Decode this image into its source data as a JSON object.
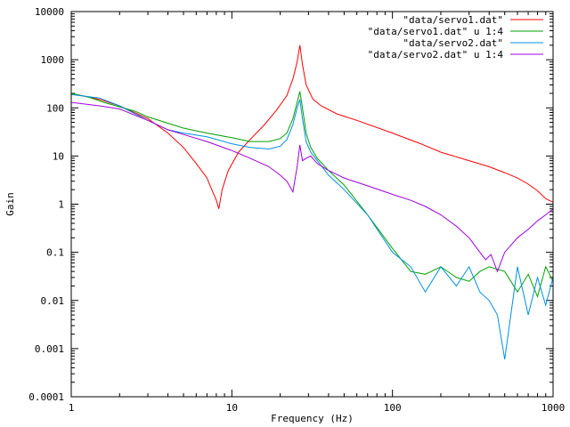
{
  "chart_data": {
    "type": "line",
    "title": "",
    "xlabel": "Frequency (Hz)",
    "ylabel": "Gain",
    "x_scale": "log",
    "y_scale": "log",
    "xlim": [
      1,
      1000
    ],
    "ylim": [
      0.0001,
      10000
    ],
    "grid": false,
    "legend_position": "top-right",
    "x_ticks": [
      {
        "value": 1,
        "label": "1"
      },
      {
        "value": 10,
        "label": "10"
      },
      {
        "value": 100,
        "label": "100"
      },
      {
        "value": 1000,
        "label": "1000"
      }
    ],
    "y_ticks": [
      {
        "value": 0.0001,
        "label": "0.0001"
      },
      {
        "value": 0.001,
        "label": "0.001"
      },
      {
        "value": 0.01,
        "label": "0.01"
      },
      {
        "value": 0.1,
        "label": "0.1"
      },
      {
        "value": 1,
        "label": "1"
      },
      {
        "value": 10,
        "label": "10"
      },
      {
        "value": 100,
        "label": "100"
      },
      {
        "value": 1000,
        "label": "1000"
      },
      {
        "value": 10000,
        "label": "10000"
      }
    ],
    "series": [
      {
        "name": "\"data/servo1.dat\"",
        "color": "#ff0000",
        "x": [
          1,
          1.5,
          2,
          3,
          4,
          5,
          6,
          7,
          7.5,
          8,
          8.3,
          8.7,
          9.5,
          11,
          13,
          16,
          19,
          22,
          24,
          25.5,
          26.5,
          27.5,
          29,
          32,
          36,
          45,
          60,
          100,
          150,
          200,
          300,
          400,
          500,
          600,
          700,
          800,
          900,
          1000
        ],
        "y": [
          200,
          150,
          110,
          60,
          30,
          15,
          7,
          3.5,
          2,
          1.2,
          0.8,
          2,
          5,
          12,
          22,
          45,
          90,
          180,
          400,
          900,
          2000,
          800,
          300,
          150,
          110,
          75,
          55,
          30,
          18,
          12,
          8,
          6,
          4.5,
          3.5,
          2.6,
          1.9,
          1.3,
          1.1
        ]
      },
      {
        "name": "\"data/servo1.dat\" u 1:4",
        "color": "#00a000",
        "x": [
          1,
          1.3,
          1.6,
          2,
          2.5,
          3,
          4,
          5,
          7,
          10,
          13,
          17,
          20,
          22,
          24,
          25.5,
          26.5,
          27.5,
          29,
          31,
          34,
          40,
          50,
          70,
          100,
          130,
          160,
          200,
          250,
          300,
          350,
          400,
          500,
          600,
          700,
          800,
          900,
          1000
        ],
        "y": [
          200,
          165,
          130,
          105,
          85,
          65,
          48,
          38,
          30,
          24,
          20,
          20,
          23,
          30,
          60,
          130,
          220,
          100,
          30,
          15,
          9,
          5,
          2.5,
          0.6,
          0.12,
          0.04,
          0.035,
          0.05,
          0.03,
          0.025,
          0.04,
          0.05,
          0.04,
          0.015,
          0.035,
          0.012,
          0.05,
          0.025
        ]
      },
      {
        "name": "\"data/servo2.dat\"",
        "color": "#0090e0",
        "x": [
          1,
          1.5,
          2,
          3,
          4,
          5,
          7,
          10,
          13,
          17,
          20,
          22,
          24,
          25.5,
          26.5,
          27.5,
          29,
          31,
          34,
          40,
          50,
          70,
          100,
          130,
          160,
          200,
          250,
          300,
          350,
          400,
          450,
          500,
          600,
          700,
          800,
          900,
          1000
        ],
        "y": [
          190,
          160,
          110,
          55,
          35,
          30,
          25,
          18,
          15,
          14,
          16,
          22,
          45,
          100,
          150,
          60,
          20,
          12,
          8,
          4,
          2,
          0.6,
          0.1,
          0.05,
          0.015,
          0.05,
          0.02,
          0.05,
          0.015,
          0.01,
          0.005,
          0.0006,
          0.05,
          0.005,
          0.03,
          0.008,
          0.03
        ]
      },
      {
        "name": "\"data/servo2.dat\" u 1:4",
        "color": "#a000e0",
        "x": [
          1,
          1.5,
          2,
          3,
          4,
          5,
          7,
          10,
          13,
          17,
          20,
          22,
          24,
          25.5,
          26.5,
          27.5,
          29,
          31,
          34,
          40,
          50,
          70,
          100,
          130,
          160,
          200,
          250,
          300,
          350,
          380,
          410,
          450,
          500,
          600,
          700,
          800,
          900,
          1000
        ],
        "y": [
          130,
          110,
          95,
          55,
          35,
          28,
          20,
          13,
          9,
          6,
          4,
          3,
          1.8,
          6,
          17,
          8,
          9,
          10,
          7,
          5,
          3.5,
          2.4,
          1.6,
          1.2,
          0.9,
          0.6,
          0.35,
          0.2,
          0.1,
          0.07,
          0.09,
          0.04,
          0.1,
          0.2,
          0.3,
          0.45,
          0.6,
          0.8
        ]
      }
    ]
  }
}
